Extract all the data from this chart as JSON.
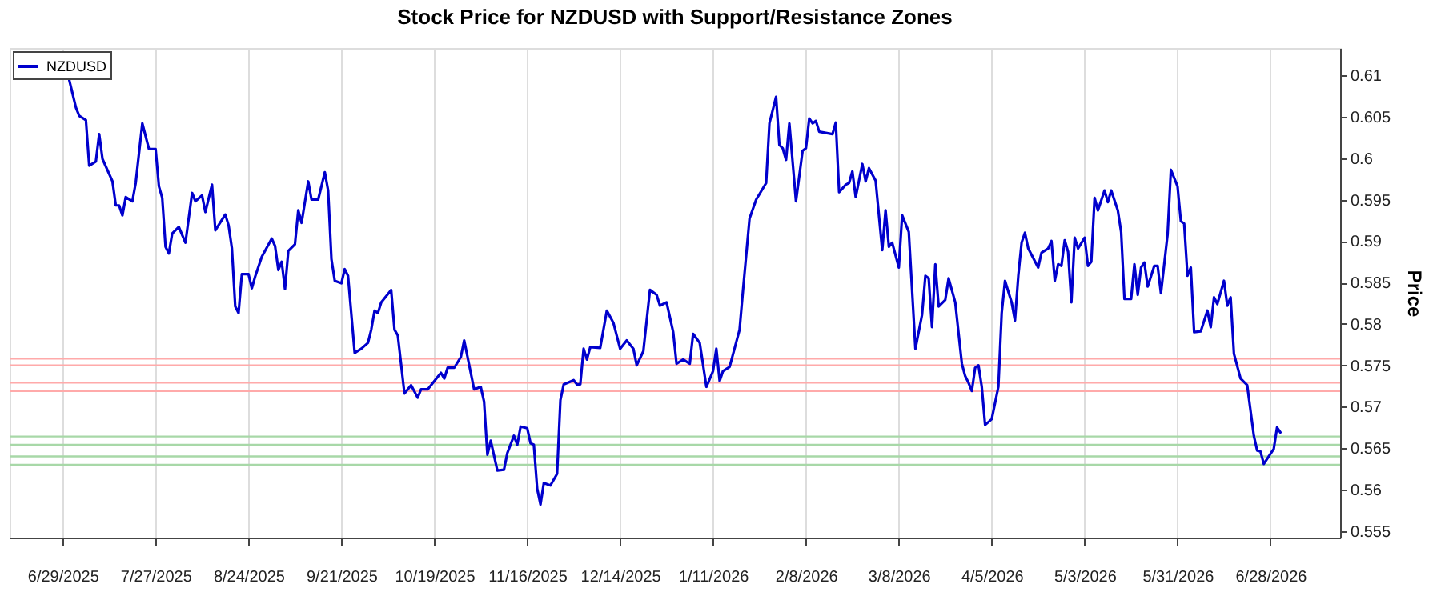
{
  "chart_data": {
    "type": "line",
    "title": "Stock Price for NZDUSD with Support/Resistance Zones",
    "ylabel": "Price",
    "xlim": [
      "2025-06-13",
      "2026-07-19"
    ],
    "ylim": [
      0.5542,
      0.6133
    ],
    "xticks": [
      {
        "value": "2025-06-29",
        "label": "6/29/2025"
      },
      {
        "value": "2025-07-27",
        "label": "7/27/2025"
      },
      {
        "value": "2025-08-24",
        "label": "8/24/2025"
      },
      {
        "value": "2025-09-21",
        "label": "9/21/2025"
      },
      {
        "value": "2025-10-19",
        "label": "10/19/2025"
      },
      {
        "value": "2025-11-16",
        "label": "11/16/2025"
      },
      {
        "value": "2025-12-14",
        "label": "12/14/2025"
      },
      {
        "value": "2026-01-11",
        "label": "1/11/2026"
      },
      {
        "value": "2026-02-08",
        "label": "2/8/2026"
      },
      {
        "value": "2026-03-08",
        "label": "3/8/2026"
      },
      {
        "value": "2026-04-05",
        "label": "4/5/2026"
      },
      {
        "value": "2026-05-03",
        "label": "5/3/2026"
      },
      {
        "value": "2026-05-31",
        "label": "5/31/2026"
      },
      {
        "value": "2026-06-28",
        "label": "6/28/2026"
      }
    ],
    "yticks": [
      0.555,
      0.56,
      0.565,
      0.57,
      0.575,
      0.58,
      0.585,
      0.59,
      0.595,
      0.6,
      0.605,
      0.61
    ],
    "grid": "x",
    "legend": "top left",
    "ref_lines": [
      {
        "axis": "y",
        "value": 0.5758,
        "color": "#ffaaaa"
      },
      {
        "axis": "y",
        "value": 0.575,
        "color": "#ffaaaa"
      },
      {
        "axis": "y",
        "value": 0.5729,
        "color": "#ffaaaa"
      },
      {
        "axis": "y",
        "value": 0.5719,
        "color": "#ffaaaa"
      },
      {
        "axis": "y",
        "value": 0.5664,
        "color": "#a8d8a8"
      },
      {
        "axis": "y",
        "value": 0.5654,
        "color": "#a8d8a8"
      },
      {
        "axis": "y",
        "value": 0.564,
        "color": "#a8d8a8"
      },
      {
        "axis": "y",
        "value": 0.563,
        "color": "#a8d8a8"
      }
    ],
    "x": [
      "2025-07-01",
      "2025-07-03",
      "2025-07-04",
      "2025-07-06",
      "2025-07-07",
      "2025-07-09",
      "2025-07-10",
      "2025-07-11",
      "2025-07-14",
      "2025-07-15",
      "2025-07-16",
      "2025-07-17",
      "2025-07-18",
      "2025-07-20",
      "2025-07-21",
      "2025-07-23",
      "2025-07-25",
      "2025-07-27",
      "2025-07-28",
      "2025-07-29",
      "2025-07-30",
      "2025-07-31",
      "2025-08-01",
      "2025-08-03",
      "2025-08-05",
      "2025-08-07",
      "2025-08-08",
      "2025-08-10",
      "2025-08-11",
      "2025-08-13",
      "2025-08-14",
      "2025-08-17",
      "2025-08-18",
      "2025-08-19",
      "2025-08-20",
      "2025-08-21",
      "2025-08-22",
      "2025-08-24",
      "2025-08-25",
      "2025-08-26",
      "2025-08-28",
      "2025-08-31",
      "2025-09-01",
      "2025-09-02",
      "2025-09-03",
      "2025-09-04",
      "2025-09-05",
      "2025-09-07",
      "2025-09-08",
      "2025-09-09",
      "2025-09-11",
      "2025-09-12",
      "2025-09-14",
      "2025-09-16",
      "2025-09-17",
      "2025-09-18",
      "2025-09-19",
      "2025-09-21",
      "2025-09-22",
      "2025-09-23",
      "2025-09-25",
      "2025-09-27",
      "2025-09-29",
      "2025-09-30",
      "2025-10-01",
      "2025-10-02",
      "2025-10-03",
      "2025-10-06",
      "2025-10-07",
      "2025-10-08",
      "2025-10-10",
      "2025-10-12",
      "2025-10-14",
      "2025-10-15",
      "2025-10-17",
      "2025-10-21",
      "2025-10-22",
      "2025-10-23",
      "2025-10-25",
      "2025-10-27",
      "2025-10-28",
      "2025-10-31",
      "2025-11-02",
      "2025-11-03",
      "2025-11-04",
      "2025-11-05",
      "2025-11-07",
      "2025-11-09",
      "2025-11-10",
      "2025-11-12",
      "2025-11-13",
      "2025-11-14",
      "2025-11-16",
      "2025-11-17",
      "2025-11-18",
      "2025-11-19",
      "2025-11-20",
      "2025-11-21",
      "2025-11-23",
      "2025-11-25",
      "2025-11-26",
      "2025-11-27",
      "2025-11-30",
      "2025-12-01",
      "2025-12-02",
      "2025-12-03",
      "2025-12-04",
      "2025-12-05",
      "2025-12-08",
      "2025-12-10",
      "2025-12-12",
      "2025-12-14",
      "2025-12-16",
      "2025-12-18",
      "2025-12-19",
      "2025-12-21",
      "2025-12-23",
      "2025-12-25",
      "2025-12-26",
      "2025-12-28",
      "2025-12-30",
      "2025-12-31",
      "2026-01-02",
      "2026-01-04",
      "2026-01-05",
      "2026-01-07",
      "2026-01-09",
      "2026-01-11",
      "2026-01-12",
      "2026-01-13",
      "2026-01-14",
      "2026-01-16",
      "2026-01-19",
      "2026-01-20",
      "2026-01-22",
      "2026-01-24",
      "2026-01-27",
      "2026-01-28",
      "2026-01-30",
      "2026-01-31",
      "2026-02-01",
      "2026-02-02",
      "2026-02-03",
      "2026-02-05",
      "2026-02-07",
      "2026-02-08",
      "2026-02-09",
      "2026-02-10",
      "2026-02-11",
      "2026-02-12",
      "2026-02-16",
      "2026-02-17",
      "2026-02-18",
      "2026-02-20",
      "2026-02-21",
      "2026-02-22",
      "2026-02-23",
      "2026-02-25",
      "2026-02-26",
      "2026-02-27",
      "2026-03-01",
      "2026-03-03",
      "2026-03-04",
      "2026-03-05",
      "2026-03-06",
      "2026-03-08",
      "2026-03-09",
      "2026-03-11",
      "2026-03-13",
      "2026-03-15",
      "2026-03-16",
      "2026-03-17",
      "2026-03-18",
      "2026-03-19",
      "2026-03-20",
      "2026-03-22",
      "2026-03-23",
      "2026-03-25",
      "2026-03-27",
      "2026-03-28",
      "2026-03-29",
      "2026-03-30",
      "2026-03-31",
      "2026-04-01",
      "2026-04-02",
      "2026-04-03",
      "2026-04-05",
      "2026-04-07",
      "2026-04-08",
      "2026-04-09",
      "2026-04-11",
      "2026-04-12",
      "2026-04-13",
      "2026-04-14",
      "2026-04-15",
      "2026-04-16",
      "2026-04-19",
      "2026-04-20",
      "2026-04-22",
      "2026-04-23",
      "2026-04-24",
      "2026-04-25",
      "2026-04-26",
      "2026-04-27",
      "2026-04-28",
      "2026-04-29",
      "2026-04-30",
      "2026-05-01",
      "2026-05-03",
      "2026-05-04",
      "2026-05-05",
      "2026-05-06",
      "2026-05-07",
      "2026-05-09",
      "2026-05-10",
      "2026-05-11",
      "2026-05-13",
      "2026-05-14",
      "2026-05-15",
      "2026-05-17",
      "2026-05-18",
      "2026-05-19",
      "2026-05-20",
      "2026-05-21",
      "2026-05-22",
      "2026-05-24",
      "2026-05-25",
      "2026-05-26",
      "2026-05-28",
      "2026-05-29",
      "2026-05-31",
      "2026-06-01",
      "2026-06-02",
      "2026-06-03",
      "2026-06-04",
      "2026-06-05",
      "2026-06-07",
      "2026-06-09",
      "2026-06-10",
      "2026-06-11",
      "2026-06-12",
      "2026-06-14",
      "2026-06-15",
      "2026-06-16",
      "2026-06-17",
      "2026-06-19",
      "2026-06-21",
      "2026-06-23",
      "2026-06-24",
      "2026-06-25",
      "2026-06-26",
      "2026-06-29",
      "2026-06-30",
      "2026-07-01"
    ],
    "series": [
      {
        "name": "NZDUSD",
        "color": "#0000cd",
        "values": [
          0.6094,
          0.6061,
          0.6051,
          0.6046,
          0.5991,
          0.5996,
          0.6029,
          0.5999,
          0.5972,
          0.5943,
          0.5943,
          0.5931,
          0.5953,
          0.5948,
          0.597,
          0.6042,
          0.6011,
          0.6011,
          0.5966,
          0.5952,
          0.5893,
          0.5885,
          0.5909,
          0.5917,
          0.5898,
          0.5958,
          0.5948,
          0.5955,
          0.5935,
          0.5968,
          0.5913,
          0.5932,
          0.5919,
          0.5891,
          0.5821,
          0.5813,
          0.586,
          0.586,
          0.5843,
          0.5857,
          0.5881,
          0.5903,
          0.5894,
          0.5865,
          0.5875,
          0.5842,
          0.5888,
          0.5896,
          0.5937,
          0.5922,
          0.5972,
          0.595,
          0.595,
          0.5983,
          0.5961,
          0.5878,
          0.5852,
          0.5849,
          0.5866,
          0.5858,
          0.5765,
          0.577,
          0.5777,
          0.5793,
          0.5816,
          0.5813,
          0.5826,
          0.5841,
          0.5793,
          0.5786,
          0.5716,
          0.5726,
          0.5711,
          0.5721,
          0.5721,
          0.5741,
          0.5734,
          0.5747,
          0.5747,
          0.576,
          0.578,
          0.5721,
          0.5724,
          0.5706,
          0.5642,
          0.5659,
          0.5623,
          0.5624,
          0.5644,
          0.5665,
          0.5654,
          0.5676,
          0.5674,
          0.5656,
          0.5654,
          0.5601,
          0.5582,
          0.5608,
          0.5605,
          0.5619,
          0.5708,
          0.5727,
          0.5732,
          0.5727,
          0.5727,
          0.577,
          0.5757,
          0.5772,
          0.5771,
          0.5816,
          0.5801,
          0.577,
          0.578,
          0.577,
          0.575,
          0.5767,
          0.5841,
          0.5835,
          0.5822,
          0.5826,
          0.579,
          0.5752,
          0.5757,
          0.5752,
          0.5788,
          0.5777,
          0.5724,
          0.5743,
          0.577,
          0.5731,
          0.5743,
          0.5748,
          0.5793,
          0.5839,
          0.5927,
          0.595,
          0.597,
          0.6042,
          0.6074,
          0.6016,
          0.6012,
          0.5998,
          0.6042,
          0.5948,
          0.6009,
          0.6012,
          0.6048,
          0.6042,
          0.6045,
          0.6032,
          0.6029,
          0.6043,
          0.5959,
          0.5968,
          0.597,
          0.5984,
          0.5953,
          0.5993,
          0.5972,
          0.5988,
          0.5973,
          0.5889,
          0.5937,
          0.5893,
          0.5898,
          0.5868,
          0.5931,
          0.5911,
          0.577,
          0.5811,
          0.5858,
          0.5855,
          0.5796,
          0.5872,
          0.5821,
          0.5829,
          0.5855,
          0.5826,
          0.5752,
          0.5737,
          0.5729,
          0.5719,
          0.5747,
          0.575,
          0.5724,
          0.5678,
          0.5685,
          0.5724,
          0.5813,
          0.5852,
          0.5826,
          0.5804,
          0.5858,
          0.5898,
          0.591,
          0.5891,
          0.5868,
          0.5886,
          0.5891,
          0.59,
          0.5852,
          0.5872,
          0.587,
          0.5901,
          0.5887,
          0.5826,
          0.5904,
          0.5891,
          0.5904,
          0.587,
          0.5875,
          0.5952,
          0.5937,
          0.5961,
          0.5947,
          0.5961,
          0.5937,
          0.5911,
          0.583,
          0.583,
          0.5872,
          0.5835,
          0.5868,
          0.5874,
          0.5845,
          0.587,
          0.587,
          0.5837,
          0.5908,
          0.5986,
          0.5966,
          0.5924,
          0.5921,
          0.5858,
          0.5868,
          0.579,
          0.5791,
          0.5816,
          0.5796,
          0.5832,
          0.5824,
          0.5852,
          0.5822,
          0.5832,
          0.5764,
          0.5734,
          0.5726,
          0.5665,
          0.5647,
          0.5646,
          0.5631,
          0.5649,
          0.5675,
          0.5669
        ]
      }
    ]
  }
}
